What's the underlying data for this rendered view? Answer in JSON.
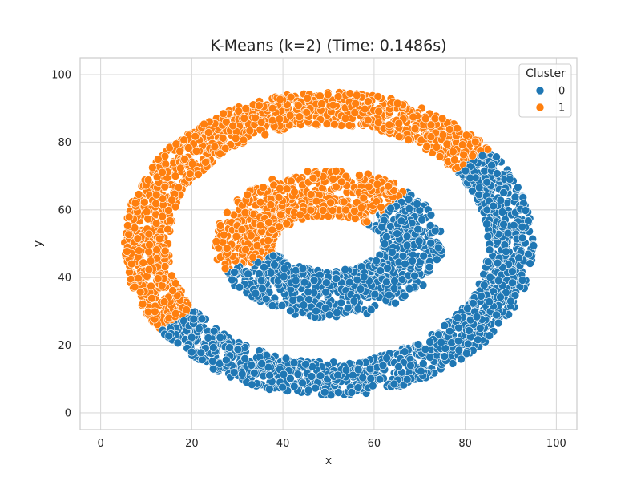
{
  "chart_data": {
    "type": "scatter",
    "title": "K-Means (k=2) (Time: 0.1486s)",
    "xlabel": "x",
    "ylabel": "y",
    "xlim": [
      -4.5,
      104.5
    ],
    "ylim": [
      -5,
      105
    ],
    "x_ticks": [
      0,
      20,
      40,
      60,
      80,
      100
    ],
    "y_ticks": [
      0,
      20,
      40,
      60,
      80,
      100
    ],
    "x_tick_labels": [
      "0",
      "20",
      "40",
      "60",
      "80",
      "100"
    ],
    "y_tick_labels": [
      "0",
      "20",
      "40",
      "60",
      "80",
      "100"
    ],
    "grid": true,
    "legend": {
      "title": "Cluster",
      "placement": "top-right",
      "entries": [
        {
          "label": "0",
          "color": "#1f77b4"
        },
        {
          "label": "1",
          "color": "#ff7f0e"
        }
      ]
    },
    "series": [
      {
        "label": "0",
        "color": "#1f77b4",
        "regions": [
          {
            "shape": "ring",
            "cx": 50,
            "cy": 50,
            "rx_outer": 45,
            "rx_inner": 35,
            "ry_outer": 45,
            "ry_inner": 35,
            "angle_from_deg": 214,
            "angle_to_deg": 398,
            "count": 1350
          },
          {
            "shape": "ring",
            "cx": 50,
            "cy": 50,
            "rx_outer": 25,
            "rx_inner": 12,
            "ry_outer": 22,
            "ry_inner": 8,
            "angle_from_deg": 202,
            "angle_to_deg": 405,
            "count": 750
          }
        ]
      },
      {
        "label": "1",
        "color": "#ff7f0e",
        "regions": [
          {
            "shape": "ring",
            "cx": 50,
            "cy": 50,
            "rx_outer": 45,
            "rx_inner": 35,
            "ry_outer": 45,
            "ry_inner": 35,
            "angle_from_deg": 38,
            "angle_to_deg": 214,
            "count": 1300
          },
          {
            "shape": "ring",
            "cx": 50,
            "cy": 50,
            "rx_outer": 25,
            "rx_inner": 12,
            "ry_outer": 22,
            "ry_inner": 8,
            "angle_from_deg": 45,
            "angle_to_deg": 202,
            "count": 620
          }
        ]
      }
    ]
  }
}
